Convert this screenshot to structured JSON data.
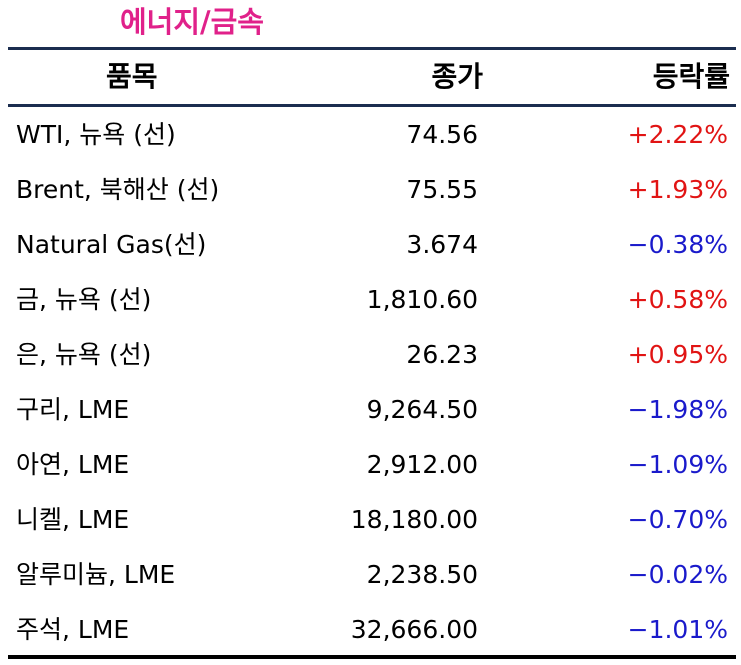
{
  "title": "에너지/금속",
  "header": {
    "item": "품목",
    "close": "종가",
    "change": "등락률"
  },
  "rows": [
    {
      "item": "WTI, 뉴욕 (선)",
      "close": "74.56",
      "change": "+2.22%",
      "direction": "up"
    },
    {
      "item": "Brent, 북해산 (선)",
      "close": "75.55",
      "change": "+1.93%",
      "direction": "up"
    },
    {
      "item": "Natural Gas(선)",
      "close": "3.674",
      "change": "−0.38%",
      "direction": "down"
    },
    {
      "item": "금, 뉴욕  (선)",
      "close": "1,810.60",
      "change": "+0.58%",
      "direction": "up"
    },
    {
      "item": "은, 뉴욕  (선)",
      "close": "26.23",
      "change": "+0.95%",
      "direction": "up"
    },
    {
      "item": "구리, LME",
      "close": "9,264.50",
      "change": "−1.98%",
      "direction": "down"
    },
    {
      "item": "아연, LME",
      "close": "2,912.00",
      "change": "−1.09%",
      "direction": "down"
    },
    {
      "item": "니켈, LME",
      "close": "18,180.00",
      "change": "−0.70%",
      "direction": "down"
    },
    {
      "item": "알루미늄, LME",
      "close": "2,238.50",
      "change": "−0.02%",
      "direction": "down"
    },
    {
      "item": "주석, LME",
      "close": "32,666.00",
      "change": "−1.01%",
      "direction": "down"
    }
  ],
  "colors": {
    "title": "#e0218a",
    "up": "#e11414",
    "down": "#1a1acb",
    "rule": "#1b2d4f"
  }
}
